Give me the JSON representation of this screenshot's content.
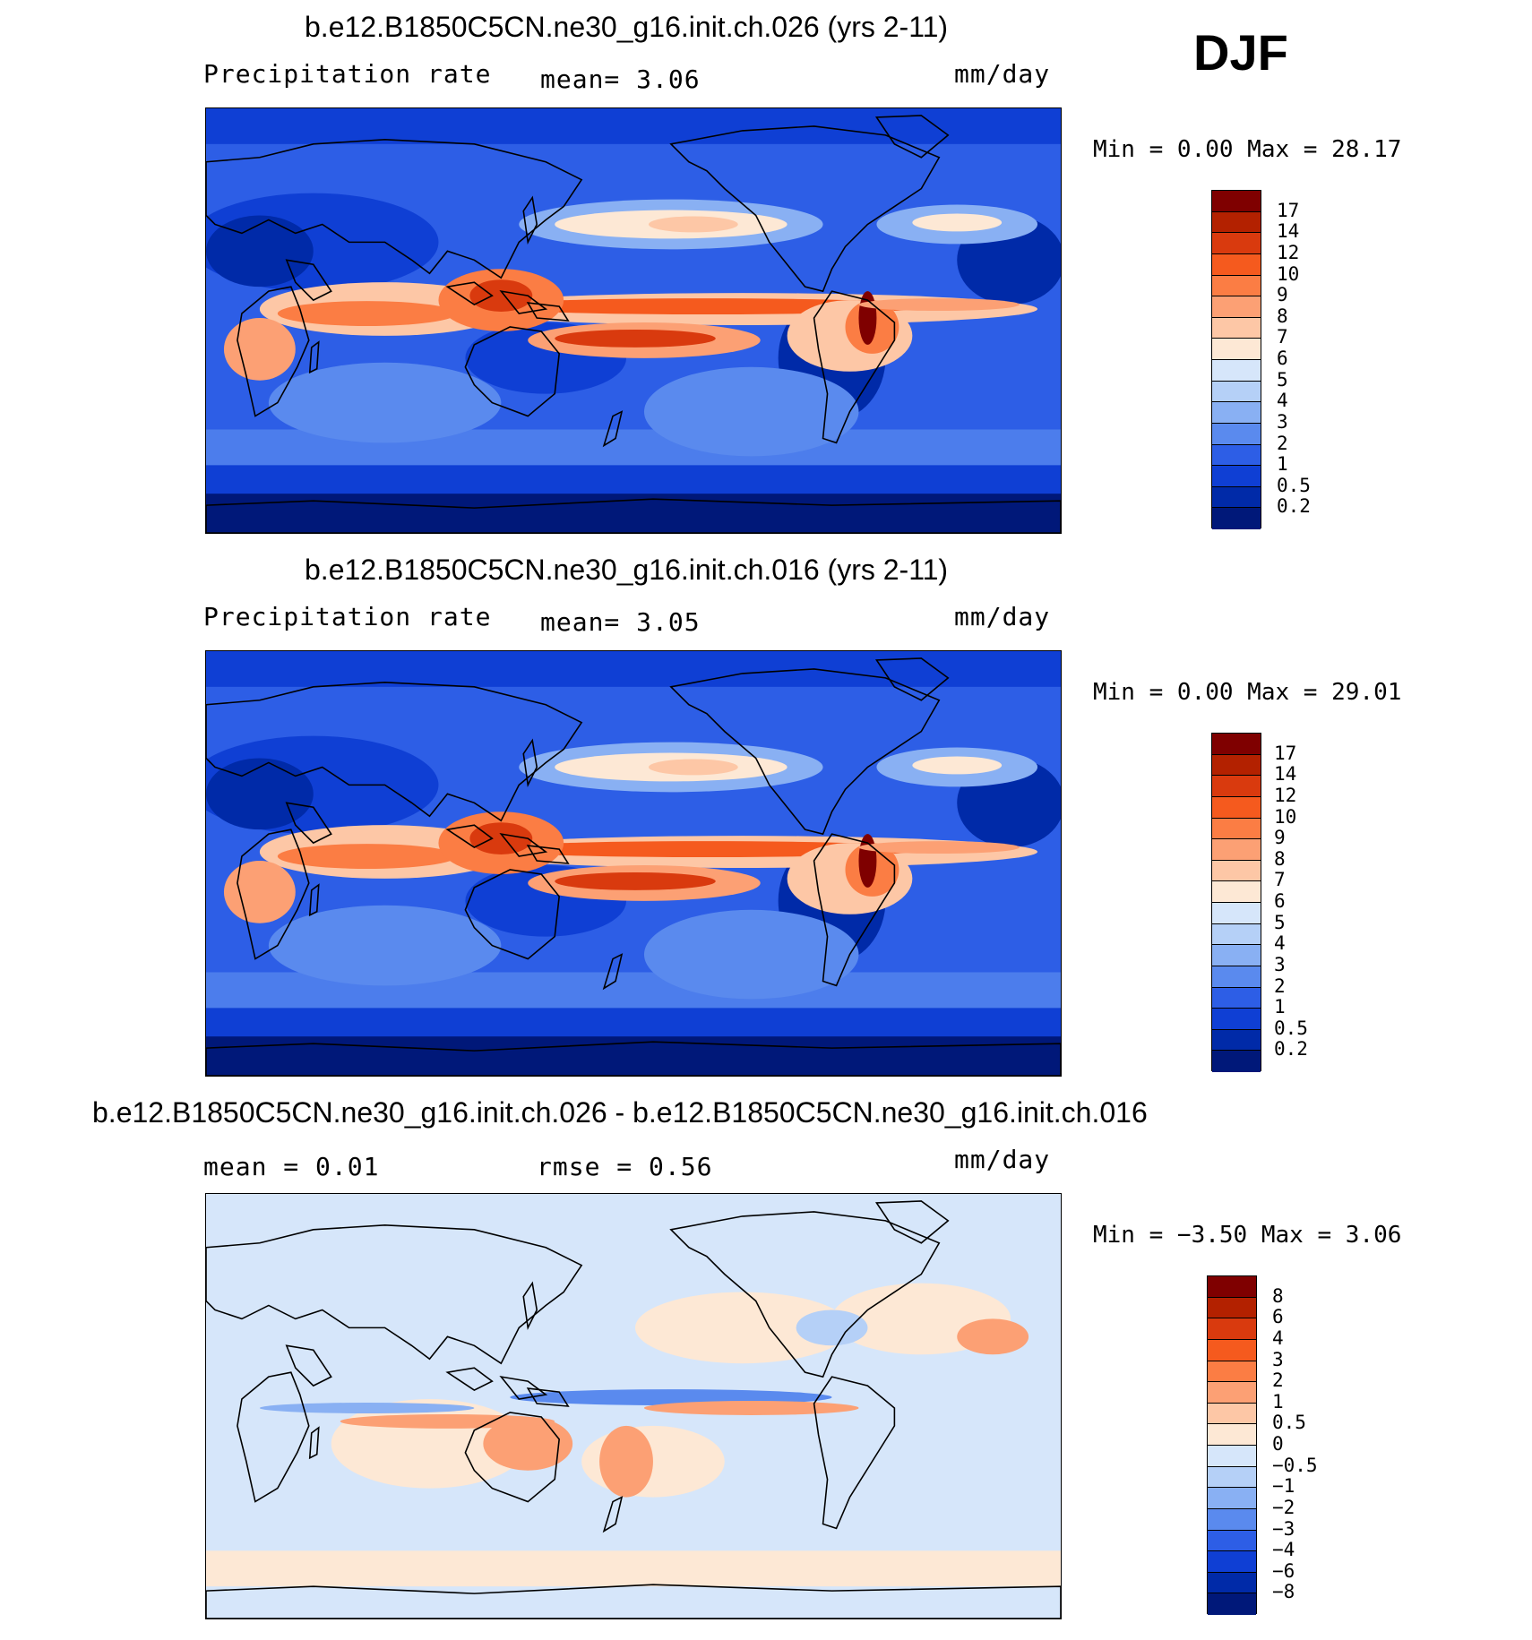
{
  "season": "DJF",
  "panels": [
    {
      "title": "b.e12.B1850C5CN.ne30_g16.init.ch.026 (yrs 2-11)",
      "left_label": "Precipitation rate",
      "center_label": "mean=    3.06",
      "units": "mm/day",
      "minmax": "Min =    0.00 Max =   28.17",
      "colorbar": {
        "labels": [
          "17",
          "14",
          "12",
          "10",
          "9",
          "8",
          "7",
          "6",
          "5",
          "4",
          "3",
          "2",
          "1",
          "0.5",
          "0.2"
        ],
        "colors": [
          "#7f0000",
          "#b32100",
          "#d93a0e",
          "#f55a1e",
          "#fb7d44",
          "#fca074",
          "#fdc7a6",
          "#fde8d5",
          "#d6e6fa",
          "#b5d0f7",
          "#89b0f3",
          "#5a8aee",
          "#2d5ee6",
          "#0f3fd4",
          "#002aa8",
          "#001879"
        ]
      },
      "map_style": "precip"
    },
    {
      "title": "b.e12.B1850C5CN.ne30_g16.init.ch.016 (yrs 2-11)",
      "left_label": "Precipitation rate",
      "center_label": "mean=    3.05",
      "units": "mm/day",
      "minmax": "Min =    0.00 Max =   29.01",
      "colorbar": {
        "labels": [
          "17",
          "14",
          "12",
          "10",
          "9",
          "8",
          "7",
          "6",
          "5",
          "4",
          "3",
          "2",
          "1",
          "0.5",
          "0.2"
        ],
        "colors": [
          "#7f0000",
          "#b32100",
          "#d93a0e",
          "#f55a1e",
          "#fb7d44",
          "#fca074",
          "#fdc7a6",
          "#fde8d5",
          "#d6e6fa",
          "#b5d0f7",
          "#89b0f3",
          "#5a8aee",
          "#2d5ee6",
          "#0f3fd4",
          "#002aa8",
          "#001879"
        ]
      },
      "map_style": "precip"
    },
    {
      "title": "b.e12.B1850C5CN.ne30_g16.init.ch.026 - b.e12.B1850C5CN.ne30_g16.init.ch.016",
      "left_label": "mean =    0.01",
      "center_label": "rmse =    0.56",
      "units": "mm/day",
      "minmax": "Min =  −3.50 Max =    3.06",
      "colorbar": {
        "labels": [
          "8",
          "6",
          "4",
          "3",
          "2",
          "1",
          "0.5",
          "0",
          "−0.5",
          "−1",
          "−2",
          "−3",
          "−4",
          "−6",
          "−8"
        ],
        "colors": [
          "#7f0000",
          "#b32100",
          "#d93a0e",
          "#f55a1e",
          "#fb7d44",
          "#fca074",
          "#fdc7a6",
          "#fde8d5",
          "#d6e6fa",
          "#b5d0f7",
          "#89b0f3",
          "#5a8aee",
          "#2d5ee6",
          "#0f3fd4",
          "#002aa8",
          "#001879"
        ]
      },
      "map_style": "diff"
    }
  ]
}
